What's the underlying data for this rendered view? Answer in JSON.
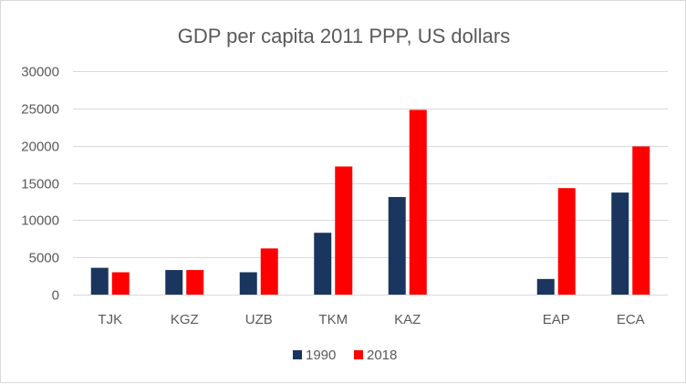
{
  "chart_data": {
    "type": "bar",
    "title": "GDP per capita 2011 PPP, US dollars",
    "xlabel": "",
    "ylabel": "",
    "categories": [
      "TJK",
      "KGZ",
      "UZB",
      "TKM",
      "KAZ",
      "",
      "EAP",
      "ECA"
    ],
    "series": [
      {
        "name": "1990",
        "color": "#1a355e",
        "values": [
          3600,
          3300,
          3000,
          8300,
          13100,
          null,
          2100,
          13700
        ]
      },
      {
        "name": "2018",
        "color": "#ff0000",
        "values": [
          3000,
          3300,
          6200,
          17200,
          24800,
          null,
          14300,
          19900
        ]
      }
    ],
    "ylim": [
      0,
      30000
    ],
    "yticks": [
      0,
      5000,
      10000,
      15000,
      20000,
      25000,
      30000
    ],
    "ytick_labels": [
      "0",
      "5000",
      "10000",
      "15000",
      "20000",
      "25000",
      "30000"
    ],
    "grid": true,
    "legend": "bottom-center"
  }
}
